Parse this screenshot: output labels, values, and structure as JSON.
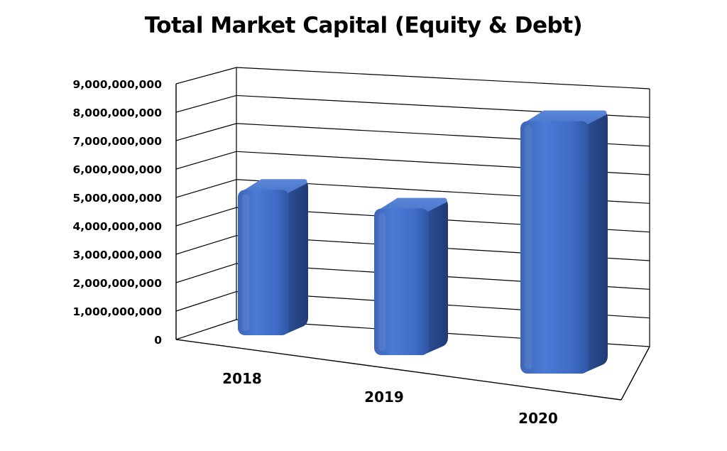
{
  "chart_data": {
    "type": "bar",
    "title": "Total Market Capital (Equity & Debt)",
    "categories": [
      "2018",
      "2019",
      "2020"
    ],
    "values": [
      4900000000,
      4850000000,
      8100000000
    ],
    "ylim": [
      0,
      9000000000
    ],
    "yticks": [
      "0",
      "1,000,000,000",
      "2,000,000,000",
      "3,000,000,000",
      "4,000,000,000",
      "5,000,000,000",
      "6,000,000,000",
      "7,000,000,000",
      "8,000,000,000",
      "9,000,000,000"
    ],
    "grid": true,
    "legend": "none",
    "bar_color": "#4472C4"
  }
}
